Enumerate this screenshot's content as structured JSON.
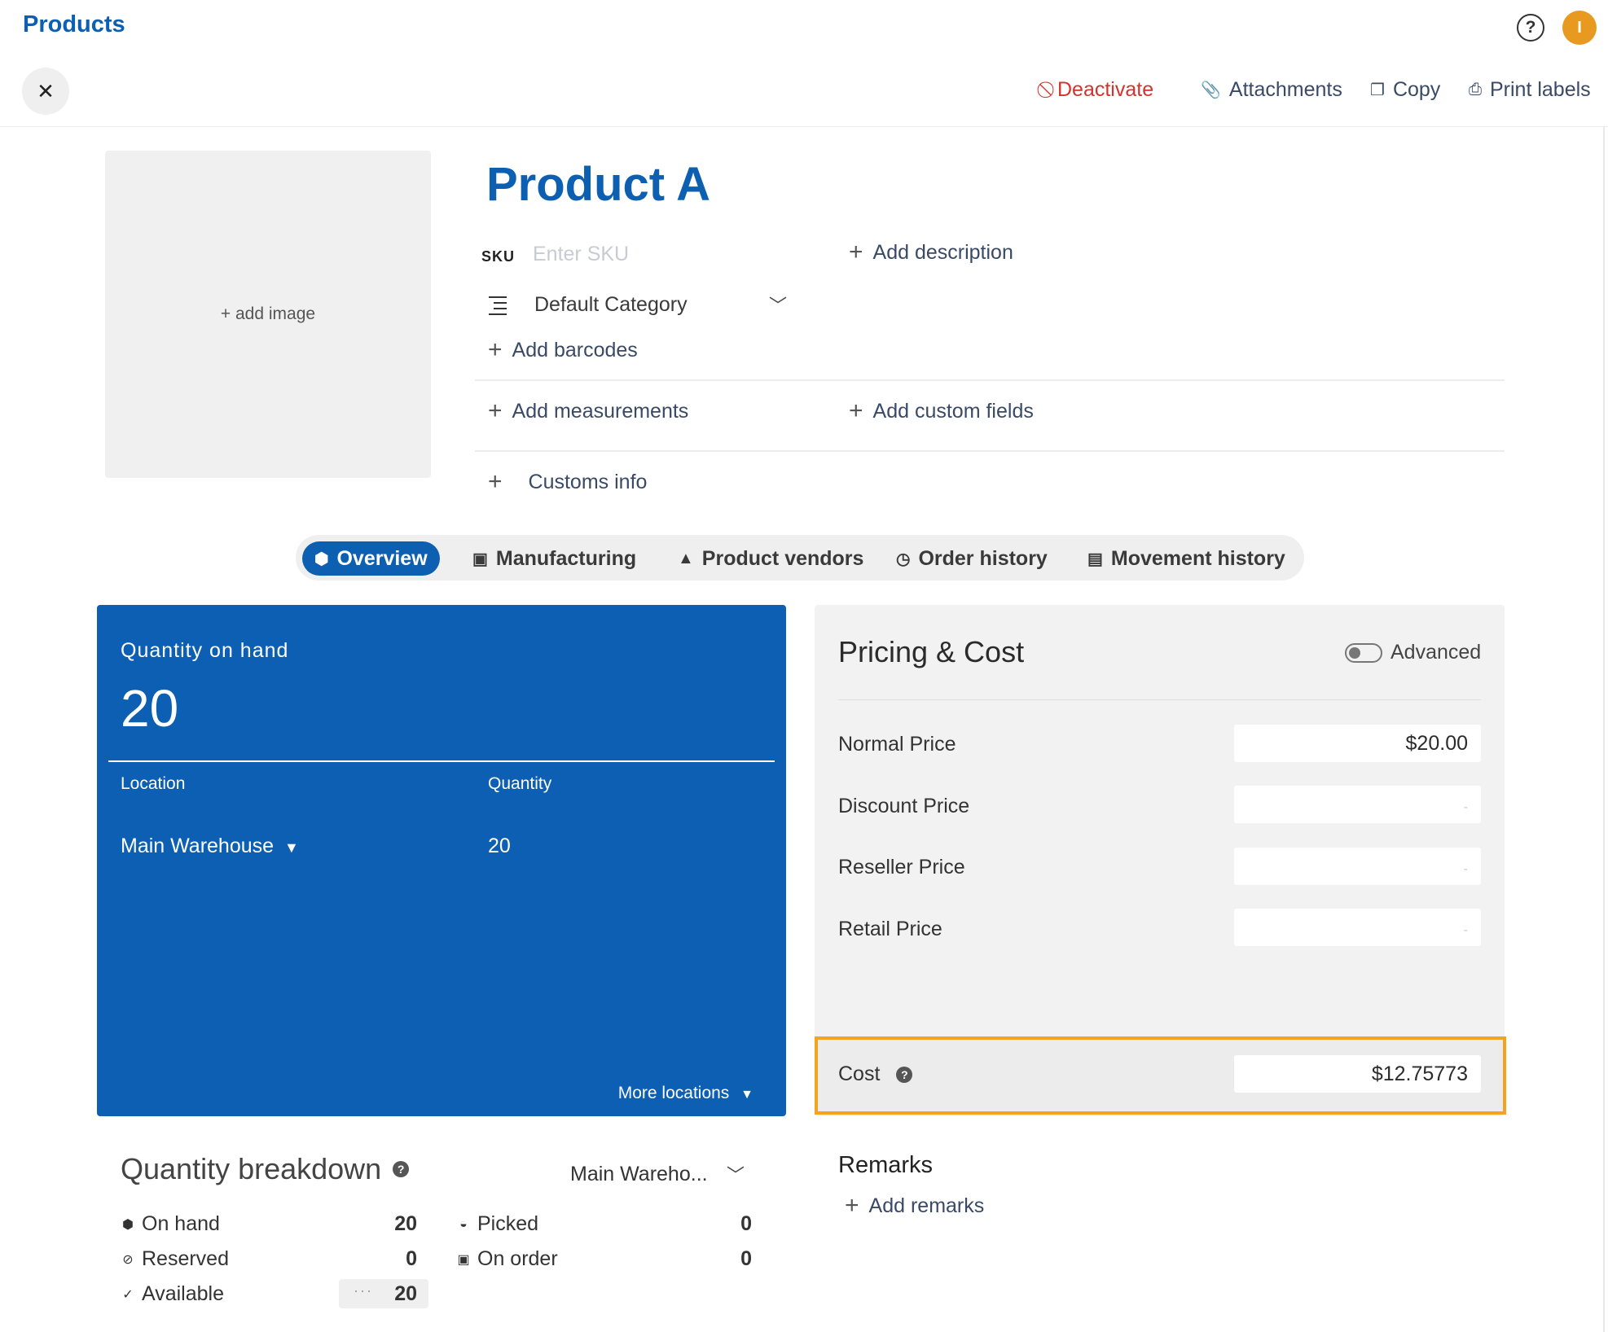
{
  "header": {
    "breadcrumb": "Products",
    "help_icon": "?",
    "avatar_initial": "I",
    "toolbar": {
      "deactivate": "Deactivate",
      "attachments": "Attachments",
      "copy": "Copy",
      "print_labels": "Print labels"
    }
  },
  "product": {
    "add_image": "+ add image",
    "title": "Product A",
    "sku_label": "SKU",
    "sku_placeholder": "Enter SKU",
    "category": "Default Category",
    "add_description": "Add description",
    "add_barcodes": "Add barcodes",
    "add_measurements": "Add measurements",
    "add_custom_fields": "Add custom fields",
    "customs_info": "Customs info"
  },
  "tabs": [
    {
      "label": "Overview",
      "icon": "box-icon",
      "active": true
    },
    {
      "label": "Manufacturing",
      "icon": "calendar-edit-icon"
    },
    {
      "label": "Product vendors",
      "icon": "person-icon"
    },
    {
      "label": "Order history",
      "icon": "clock-icon"
    },
    {
      "label": "Movement history",
      "icon": "calendar-icon"
    }
  ],
  "quantity_card": {
    "label": "Quantity on hand",
    "total": "20",
    "col_location": "Location",
    "col_quantity": "Quantity",
    "rows": [
      {
        "location": "Main Warehouse",
        "quantity": "20"
      }
    ],
    "more_locations": "More locations"
  },
  "pricing": {
    "title": "Pricing & Cost",
    "advanced_label": "Advanced",
    "advanced_on": false,
    "rows": [
      {
        "label": "Normal Price",
        "value": "$20.00",
        "placeholder": ""
      },
      {
        "label": "Discount Price",
        "value": "",
        "placeholder": "-"
      },
      {
        "label": "Reseller Price",
        "value": "",
        "placeholder": "-"
      },
      {
        "label": "Retail Price",
        "value": "",
        "placeholder": "-"
      }
    ],
    "cost_label": "Cost",
    "cost_value": "$12.75773",
    "highlight_color": "#f2a41f"
  },
  "breakdown": {
    "title": "Quantity breakdown",
    "location_select": "Main Wareho...",
    "on_hand_label": "On hand",
    "on_hand": "20",
    "reserved_label": "Reserved",
    "reserved": "0",
    "available_label": "Available",
    "available": "20",
    "picked_label": "Picked",
    "picked": "0",
    "on_order_label": "On order",
    "on_order": "0"
  },
  "remarks": {
    "title": "Remarks",
    "add_remarks": "Add remarks"
  },
  "colors": {
    "brand_blue": "#0d5fb2",
    "danger_red": "#d0342c",
    "avatar_orange": "#e89a20"
  }
}
